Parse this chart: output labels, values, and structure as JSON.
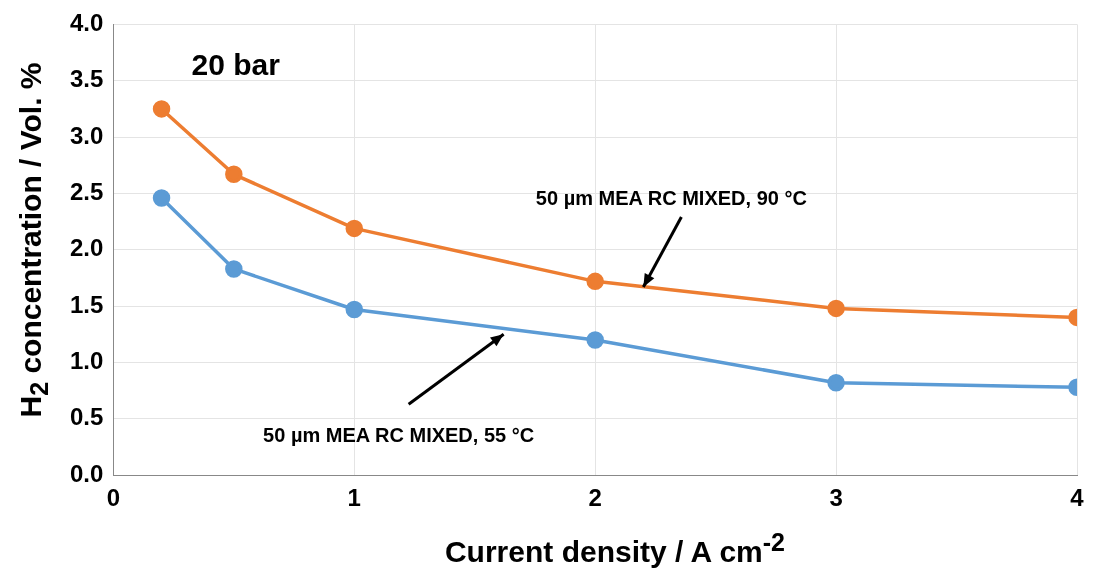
{
  "chart_data": {
    "type": "line",
    "xlabel": "Current density / A cm$^{-2}$",
    "ylabel": "H$_{2}$ concentration / Vol. %",
    "x": [
      0.2,
      0.5,
      1,
      2,
      3,
      4
    ],
    "series": [
      {
        "color": "#ed7d31",
        "values": [
          3.25,
          2.67,
          2.19,
          1.72,
          1.48,
          1.4
        ]
      },
      {
        "color": "#5b9bd5",
        "values": [
          2.46,
          1.83,
          1.47,
          1.2,
          0.82,
          0.78
        ]
      }
    ],
    "xlim": [
      0,
      4
    ],
    "xticks": [
      0,
      1,
      2,
      3,
      4
    ],
    "ylim": [
      0,
      4
    ],
    "yticks": [
      {
        "value": 0,
        "label": "0.0"
      },
      0.5,
      {
        "value": 1,
        "label": "1.0"
      },
      1.5,
      {
        "value": 2,
        "label": "2.0"
      },
      2.5,
      {
        "value": 3,
        "label": "3.0"
      },
      3.5,
      {
        "value": 4,
        "label": "4.0"
      }
    ],
    "grid": true,
    "legend": false,
    "marker": "circle",
    "line_style": "solid",
    "annotations": [
      "20 bar",
      {
        "text": "50 µm MEA RC MIXED, 90 °C",
        "x": 2.2,
        "y": 1.67
      },
      {
        "text": "50 µm MEA RC MIXED, 55 °C",
        "x": 1.62,
        "y": 1.25
      }
    ]
  }
}
